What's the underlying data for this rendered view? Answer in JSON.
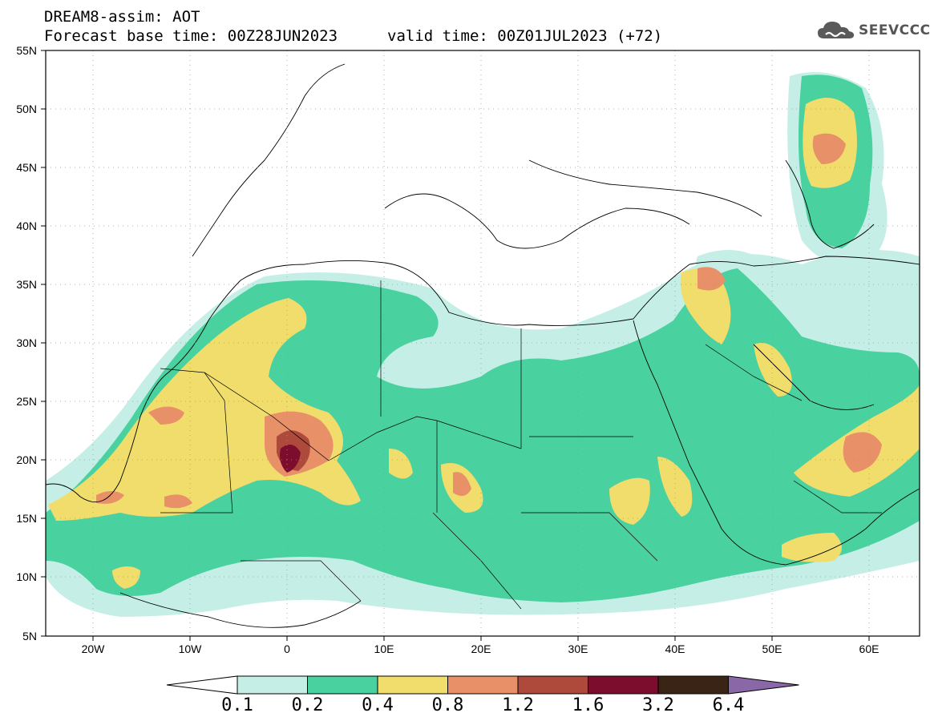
{
  "header": {
    "title": "DREAM8-assim: AOT",
    "base_time": "Forecast base time: 00Z28JUN2023",
    "valid_time": "valid time: 00Z01JUL2023 (+72)"
  },
  "logo": {
    "text": "SEEVCCC",
    "icon": "cloud-logo-icon"
  },
  "map": {
    "lat_ticks": [
      "55N",
      "50N",
      "45N",
      "40N",
      "35N",
      "30N",
      "25N",
      "20N",
      "15N",
      "10N",
      "5N"
    ],
    "lon_ticks": [
      "20W",
      "10W",
      "0",
      "10E",
      "20E",
      "30E",
      "40E",
      "50E",
      "60E"
    ],
    "lat_range": [
      5,
      55
    ],
    "lon_range": [
      -25,
      65
    ],
    "variable": "AOT"
  },
  "colorbar": {
    "levels": [
      "0.1",
      "0.2",
      "0.4",
      "0.8",
      "1.2",
      "1.6",
      "3.2",
      "6.4"
    ],
    "colors": [
      "#c5efe6",
      "#49d1a0",
      "#f0dd6c",
      "#e89068",
      "#ae4a3c",
      "#7d0d2d",
      "#3a2415",
      "#8a68a8"
    ],
    "under_color": "#ffffff"
  }
}
